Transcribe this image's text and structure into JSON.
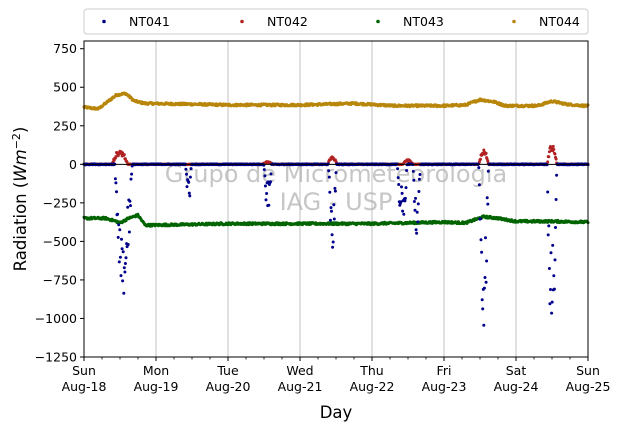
{
  "chart_data": {
    "type": "scatter",
    "xlabel": "Day",
    "ylabel_prefix": "Radiation (",
    "ylabel_unit_base": "Wm",
    "ylabel_unit_exp": "−2",
    "ylabel_suffix": ")",
    "xlim": [
      0,
      7
    ],
    "ylim": [
      -1250,
      800
    ],
    "yticks": [
      -1250,
      -1000,
      -750,
      -500,
      -250,
      0,
      250,
      500,
      750
    ],
    "ytick_labels": [
      "−1250",
      "−1000",
      "−750",
      "−500",
      "−250",
      "0",
      "250",
      "500",
      "750"
    ],
    "xticks": [
      {
        "x": 0,
        "line1": "Sun",
        "line2": "Aug-18"
      },
      {
        "x": 1,
        "line1": "Mon",
        "line2": "Aug-19"
      },
      {
        "x": 2,
        "line1": "Tue",
        "line2": "Aug-20"
      },
      {
        "x": 3,
        "line1": "Wed",
        "line2": "Aug-21"
      },
      {
        "x": 4,
        "line1": "Thu",
        "line2": "Aug-22"
      },
      {
        "x": 5,
        "line1": "Fri",
        "line2": "Aug-23"
      },
      {
        "x": 6,
        "line1": "Sat",
        "line2": "Aug-24"
      },
      {
        "x": 7,
        "line1": "Sun",
        "line2": "Aug-25"
      }
    ],
    "grid": "x-major",
    "zero_line": true,
    "legend_position": "top",
    "watermark": [
      "Grupo de Micrometeorologia",
      "IAG - USP"
    ],
    "series": [
      {
        "name": "NT041",
        "color": "#00008b",
        "baseline": 0,
        "events": [
          {
            "center": 0.55,
            "width": 0.09,
            "depth": -700
          },
          {
            "center": 1.45,
            "width": 0.03,
            "depth": -240
          },
          {
            "center": 2.55,
            "width": 0.04,
            "depth": -250
          },
          {
            "center": 3.45,
            "width": 0.04,
            "depth": -460
          },
          {
            "center": 4.42,
            "width": 0.05,
            "depth": -330
          },
          {
            "center": 4.62,
            "width": 0.04,
            "depth": -380
          },
          {
            "center": 5.55,
            "width": 0.05,
            "depth": -880
          },
          {
            "center": 6.5,
            "width": 0.05,
            "depth": -1020
          }
        ]
      },
      {
        "name": "NT042",
        "color": "#b22222",
        "baseline": 0,
        "events": [
          {
            "center": 0.5,
            "width": 0.08,
            "depth": 80
          },
          {
            "center": 2.55,
            "width": 0.05,
            "depth": 15
          },
          {
            "center": 3.45,
            "width": 0.05,
            "depth": 40
          },
          {
            "center": 4.5,
            "width": 0.05,
            "depth": 25
          },
          {
            "center": 5.55,
            "width": 0.05,
            "depth": 80
          },
          {
            "center": 6.5,
            "width": 0.05,
            "depth": 110
          }
        ]
      },
      {
        "name": "NT043",
        "color": "#006400",
        "points": [
          [
            0,
            -350
          ],
          [
            0.3,
            -350
          ],
          [
            0.45,
            -370
          ],
          [
            0.5,
            -380
          ],
          [
            0.62,
            -350
          ],
          [
            0.75,
            -330
          ],
          [
            0.85,
            -395
          ],
          [
            1.5,
            -390
          ],
          [
            2,
            -385
          ],
          [
            3,
            -385
          ],
          [
            4,
            -385
          ],
          [
            5,
            -375
          ],
          [
            5.3,
            -380
          ],
          [
            5.55,
            -340
          ],
          [
            5.75,
            -350
          ],
          [
            6,
            -370
          ],
          [
            6.5,
            -370
          ],
          [
            7,
            -375
          ]
        ]
      },
      {
        "name": "NT044",
        "color": "#b8860b",
        "points": [
          [
            0,
            370
          ],
          [
            0.2,
            360
          ],
          [
            0.45,
            450
          ],
          [
            0.58,
            460
          ],
          [
            0.7,
            410
          ],
          [
            0.85,
            395
          ],
          [
            1.5,
            390
          ],
          [
            2,
            385
          ],
          [
            3,
            385
          ],
          [
            3.75,
            395
          ],
          [
            4.3,
            380
          ],
          [
            5,
            380
          ],
          [
            5.3,
            385
          ],
          [
            5.5,
            420
          ],
          [
            5.7,
            405
          ],
          [
            5.85,
            380
          ],
          [
            6.3,
            380
          ],
          [
            6.5,
            410
          ],
          [
            6.7,
            390
          ],
          [
            7,
            378
          ]
        ]
      }
    ]
  }
}
